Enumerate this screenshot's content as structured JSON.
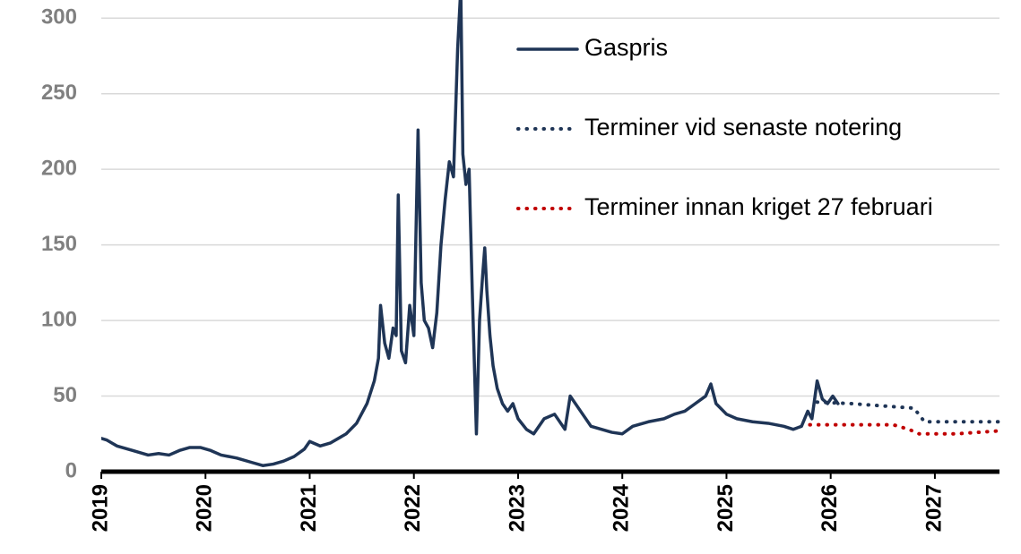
{
  "chart_data": {
    "type": "line",
    "xlim": [
      2019,
      2027.62
    ],
    "xticks": [
      2019,
      2020,
      2021,
      2022,
      2023,
      2024,
      2025,
      2026,
      2027
    ],
    "ylim": [
      0,
      312
    ],
    "yticks": [
      0,
      50,
      100,
      150,
      200,
      250,
      300
    ],
    "grid": true,
    "legend": "top-right",
    "series": [
      {
        "name": "Gaspris",
        "color": "#1f3556",
        "style": "solid",
        "x": [
          2019.0,
          2019.05,
          2019.15,
          2019.3,
          2019.45,
          2019.55,
          2019.65,
          2019.75,
          2019.85,
          2019.95,
          2020.05,
          2020.15,
          2020.3,
          2020.45,
          2020.55,
          2020.65,
          2020.75,
          2020.85,
          2020.95,
          2021.0,
          2021.1,
          2021.2,
          2021.35,
          2021.45,
          2021.55,
          2021.62,
          2021.66,
          2021.68,
          2021.72,
          2021.76,
          2021.8,
          2021.83,
          2021.85,
          2021.88,
          2021.92,
          2021.96,
          2022.0,
          2022.04,
          2022.07,
          2022.1,
          2022.14,
          2022.18,
          2022.22,
          2022.26,
          2022.3,
          2022.34,
          2022.38,
          2022.42,
          2022.45,
          2022.47,
          2022.5,
          2022.53,
          2022.56,
          2022.6,
          2022.63,
          2022.66,
          2022.68,
          2022.7,
          2022.73,
          2022.76,
          2022.8,
          2022.85,
          2022.9,
          2022.95,
          2023.0,
          2023.08,
          2023.15,
          2023.25,
          2023.35,
          2023.45,
          2023.5,
          2023.6,
          2023.7,
          2023.8,
          2023.9,
          2024.0,
          2024.1,
          2024.25,
          2024.4,
          2024.5,
          2024.6,
          2024.7,
          2024.8,
          2024.85,
          2024.9,
          2025.0,
          2025.1,
          2025.25,
          2025.4,
          2025.55,
          2025.64,
          2025.72,
          2025.78,
          2025.82,
          2025.87,
          2025.92,
          2025.97,
          2026.02,
          2026.07
        ],
        "values": [
          22,
          21,
          17,
          14,
          11,
          12,
          11,
          14,
          16,
          16,
          14,
          11,
          9,
          6,
          4,
          5,
          7,
          10,
          15,
          20,
          17,
          19,
          25,
          32,
          45,
          60,
          75,
          110,
          85,
          75,
          95,
          90,
          183,
          80,
          72,
          110,
          90,
          226,
          125,
          100,
          95,
          82,
          105,
          150,
          180,
          205,
          195,
          280,
          320,
          210,
          190,
          200,
          120,
          25,
          100,
          130,
          148,
          120,
          90,
          70,
          55,
          45,
          40,
          45,
          35,
          28,
          25,
          35,
          38,
          28,
          50,
          40,
          30,
          28,
          26,
          25,
          30,
          33,
          35,
          38,
          40,
          45,
          50,
          58,
          45,
          38,
          35,
          33,
          32,
          30,
          28,
          30,
          40,
          35,
          60,
          48,
          45,
          50,
          45
        ]
      },
      {
        "name": "Terminer vid senaste notering",
        "color": "#1f3556",
        "style": "dotted",
        "x": [
          2025.87,
          2026.2,
          2026.6,
          2026.8,
          2026.9,
          2027.2,
          2027.62
        ],
        "values": [
          46,
          45,
          43,
          42,
          33,
          33,
          33
        ]
      },
      {
        "name": "Terminer innan kriget 27 februari",
        "color": "#c00000",
        "style": "dotted",
        "x": [
          2025.8,
          2026.2,
          2026.6,
          2026.75,
          2026.85,
          2027.2,
          2027.62
        ],
        "values": [
          31,
          31,
          31,
          28,
          25,
          25,
          27
        ]
      }
    ]
  }
}
